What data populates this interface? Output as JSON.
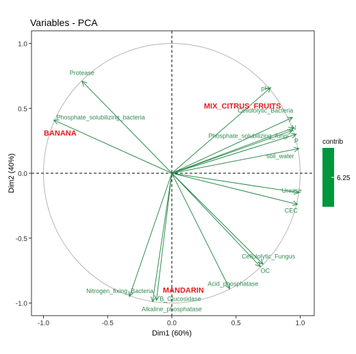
{
  "colors": {
    "arrow": "#2e8b4f",
    "label": "#2e8b4f",
    "group": "#e8191c",
    "legend": "#00963b",
    "circle": "#b3b3b3",
    "frame": "#333333"
  },
  "chart_data": {
    "type": "scatter",
    "subtype": "pca-variable-correlation-circle",
    "title": "Variables - PCA",
    "xlabel": "Dim1 (60%)",
    "ylabel": "Dim2 (40%)",
    "xlim": [
      -1.1,
      1.1
    ],
    "ylim": [
      -1.1,
      1.1
    ],
    "xticks": [
      "-1.0",
      "-0.5",
      "0.0",
      "0.5",
      "1.0"
    ],
    "yticks": [
      "1.0",
      "0.5",
      "0.0",
      "-0.5",
      "-1.0"
    ],
    "grid": false,
    "reference_lines": "dashed at x=0 and y=0",
    "unit_circle": true,
    "variables": [
      {
        "name": "Protease",
        "x": -0.7,
        "y": 0.71
      },
      {
        "name": "Phosphate_solubilizing_bacteria",
        "x": -0.92,
        "y": 0.41
      },
      {
        "name": "pH",
        "x": 0.77,
        "y": 0.66
      },
      {
        "name": "Cellulolytic_Bacteria",
        "x": 0.94,
        "y": 0.43
      },
      {
        "name": "N",
        "x": 0.95,
        "y": 0.35
      },
      {
        "name": "Phosphate_solubilizing_fungi",
        "x": 0.94,
        "y": 0.33
      },
      {
        "name": "P",
        "x": 0.97,
        "y": 0.3
      },
      {
        "name": "soil_water",
        "x": 0.99,
        "y": 0.19
      },
      {
        "name": "Urease",
        "x": 0.99,
        "y": -0.15
      },
      {
        "name": "CEC",
        "x": 0.98,
        "y": -0.24
      },
      {
        "name": "Cellulolytic_Fungus",
        "x": 0.71,
        "y": -0.7
      },
      {
        "name": "OC",
        "x": 0.69,
        "y": -0.72
      },
      {
        "name": "Acid_phosphatase",
        "x": 0.45,
        "y": -0.89
      },
      {
        "name": "Nitrogen_fixing_Bacteria",
        "x": -0.33,
        "y": -0.95
      },
      {
        "name": "B_Glucosidase",
        "x": -0.12,
        "y": -0.98
      },
      {
        "name": "Alkaline_phosphatase",
        "x": -0.15,
        "y": -0.99
      }
    ],
    "groups": [
      {
        "name": "MIX_CITRUS_FRUITS",
        "x": 0.55,
        "y": 0.5
      },
      {
        "name": "BANANA",
        "x": -0.87,
        "y": 0.29
      },
      {
        "name": "MANDARIN",
        "x": 0.09,
        "y": -0.92
      }
    ],
    "legend": {
      "title": "contrib",
      "label": "6.25",
      "placement": "right"
    }
  }
}
